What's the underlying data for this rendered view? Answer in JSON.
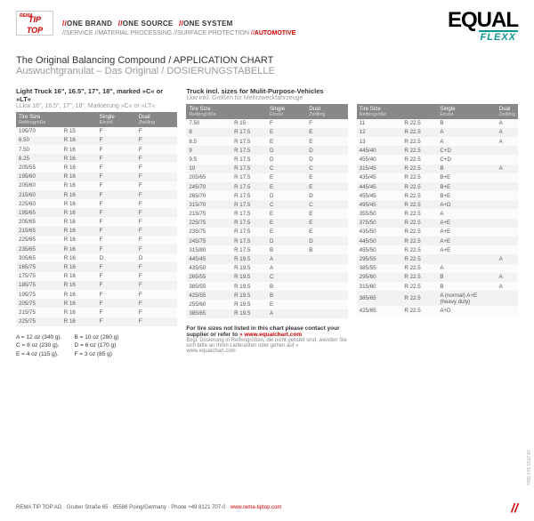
{
  "brand": {
    "rema": "REMA",
    "tip": "TIP",
    "top": "TOP",
    "tagline": [
      "ONE BRAND",
      "ONE SOURCE",
      "ONE SYSTEM"
    ],
    "subnav": [
      "SERVICE",
      "MATERIAL PROCESSING",
      "SURFACE PROTECTION",
      "AUTOMOTIVE"
    ],
    "equal": "EQUAL",
    "flexx": "FLEXX"
  },
  "title": {
    "main": "The Original Balancing Compound / APPLICATION CHART",
    "sub": "Auswuchtgranulat – Das Original / DOSIERUNGSTABELLE"
  },
  "section1": {
    "head": "Light Truck 16\", 16.5\", 17\", 18\", marked »C« or »LT«",
    "headsub": "LLkw 16\", 16.5\", 17\", 18\", Markierung »C« or »LT«"
  },
  "section2": {
    "head": "Truck incl. sizes for Mulit-Purpose-Vehicles",
    "headsub": "Lkw inkl. Größen für Mehrzweckfahrzeuge"
  },
  "th": {
    "tiresize": "Tire Size",
    "tiresize_sub": "Reifengröße",
    "single": "Single",
    "single_sub": "Einzel",
    "dual": "Dual",
    "dual_sub": "Zwilling"
  },
  "table1": [
    [
      "195/70",
      "R 15",
      "F",
      "F"
    ],
    [
      "6.50",
      "R 16",
      "F",
      "F"
    ],
    [
      "7.50",
      "R 16",
      "F",
      "F"
    ],
    [
      "8.25",
      "R 16",
      "F",
      "F"
    ],
    [
      "205/55",
      "R 16",
      "F",
      "F"
    ],
    [
      "195/60",
      "R 16",
      "F",
      "F"
    ],
    [
      "205/60",
      "R 16",
      "F",
      "F"
    ],
    [
      "215/60",
      "R 16",
      "F",
      "F"
    ],
    [
      "225/60",
      "R 16",
      "F",
      "F"
    ],
    [
      "195/65",
      "R 16",
      "F",
      "F"
    ],
    [
      "205/65",
      "R 16",
      "F",
      "F"
    ],
    [
      "215/65",
      "R 16",
      "F",
      "F"
    ],
    [
      "225/65",
      "R 16",
      "F",
      "F"
    ],
    [
      "235/65",
      "R 16",
      "F",
      "F"
    ],
    [
      "305/65",
      "R 16",
      "D",
      "D"
    ],
    [
      "165/75",
      "R 16",
      "F",
      "F"
    ],
    [
      "175/75",
      "R 16",
      "F",
      "F"
    ],
    [
      "185/75",
      "R 16",
      "F",
      "F"
    ],
    [
      "195/75",
      "R 16",
      "F",
      "F"
    ],
    [
      "205/75",
      "R 16",
      "F",
      "F"
    ],
    [
      "215/75",
      "R 16",
      "F",
      "F"
    ],
    [
      "225/75",
      "R 16",
      "F",
      "F"
    ]
  ],
  "table2": [
    [
      "7.50",
      "R 15",
      "F",
      "F"
    ],
    [
      "8",
      "R 17.5",
      "E",
      "E"
    ],
    [
      "8.5",
      "R 17.5",
      "E",
      "E"
    ],
    [
      "9",
      "R 17.5",
      "D",
      "D"
    ],
    [
      "9.5",
      "R 17.5",
      "D",
      "D"
    ],
    [
      "10",
      "R 17.5",
      "C",
      "C"
    ],
    [
      "205/65",
      "R 17.5",
      "E",
      "E"
    ],
    [
      "245/70",
      "R 17.5",
      "E",
      "E"
    ],
    [
      "265/70",
      "R 17.5",
      "D",
      "D"
    ],
    [
      "315/70",
      "R 17.5",
      "C",
      "C"
    ],
    [
      "215/75",
      "R 17.5",
      "E",
      "E"
    ],
    [
      "225/75",
      "R 17.5",
      "E",
      "E"
    ],
    [
      "235/75",
      "R 17.5",
      "E",
      "E"
    ],
    [
      "245/75",
      "R 17.5",
      "D",
      "D"
    ],
    [
      "315/80",
      "R 17.5",
      "B",
      "B"
    ],
    [
      "445/45",
      "R 19.5",
      "A",
      ""
    ],
    [
      "435/50",
      "R 19.5",
      "A",
      ""
    ],
    [
      "265/55",
      "R 19.5",
      "C",
      ""
    ],
    [
      "385/55",
      "R 19.5",
      "B",
      ""
    ],
    [
      "425/55",
      "R 19.5",
      "B",
      ""
    ],
    [
      "255/60",
      "R 19.5",
      "E",
      ""
    ],
    [
      "385/65",
      "R 19.5",
      "A",
      ""
    ]
  ],
  "table3": [
    [
      "11",
      "R 22.5",
      "B",
      "A"
    ],
    [
      "12",
      "R 22.5",
      "A",
      "A"
    ],
    [
      "13",
      "R 22.5",
      "A",
      "A"
    ],
    [
      "445/40",
      "R 22.5",
      "C+D",
      ""
    ],
    [
      "455/40",
      "R 22.5",
      "C+D",
      ""
    ],
    [
      "315/45",
      "R 22.5",
      "B",
      "A"
    ],
    [
      "435/45",
      "R 22.5",
      "B+E",
      ""
    ],
    [
      "445/45",
      "R 22.5",
      "B+E",
      ""
    ],
    [
      "455/45",
      "R 22.5",
      "B+E",
      ""
    ],
    [
      "495/45",
      "R 22.5",
      "A+D",
      ""
    ],
    [
      "355/50",
      "R 22.5",
      "A",
      ""
    ],
    [
      "375/50",
      "R 22.5",
      "A+E",
      ""
    ],
    [
      "435/50",
      "R 22.5",
      "A+E",
      ""
    ],
    [
      "445/50",
      "R 22.5",
      "A+E",
      ""
    ],
    [
      "455/50",
      "R 22.5",
      "A+E",
      ""
    ],
    [
      "295/55",
      "R 22.5",
      "",
      "A"
    ],
    [
      "385/55",
      "R 22.5",
      "A",
      ""
    ],
    [
      "295/60",
      "R 22.5",
      "B",
      "A"
    ],
    [
      "315/60",
      "R 22.5",
      "B",
      "A"
    ],
    [
      "385/65",
      "R 22.5",
      "A (normal) A+E (heavy duty)",
      ""
    ],
    [
      "425/65",
      "R 22.5",
      "A+D",
      ""
    ]
  ],
  "legend": {
    "c1": "A = 12 oz (340 g).\nC = 8 oz (230 g).\nE = 4 oz (115 g).",
    "c2": "B = 10 oz (280 g)\nD = 6 oz (170 g)\nF = 3 oz (85 g)"
  },
  "note": {
    "line1a": "For tire sizes not listed in this chart please contact your supplier or refer to ",
    "line1b": "» www.equalchart.com",
    "line2": "Bzgl. Dosierung in Reifengrößen, die nicht gelistet sind, wenden Sie sich bitte an Ihren Lieferanten oder gehen auf » www.equalchart.com"
  },
  "footer": {
    "text": "REMA TIP TOP AG · Gruber Straße 65 · 85586 Poing/Germany · Phone +49 8121 707-0 · ",
    "url": "www.rema-tiptop.com"
  },
  "sidecode": "08.2015   514 58xx"
}
